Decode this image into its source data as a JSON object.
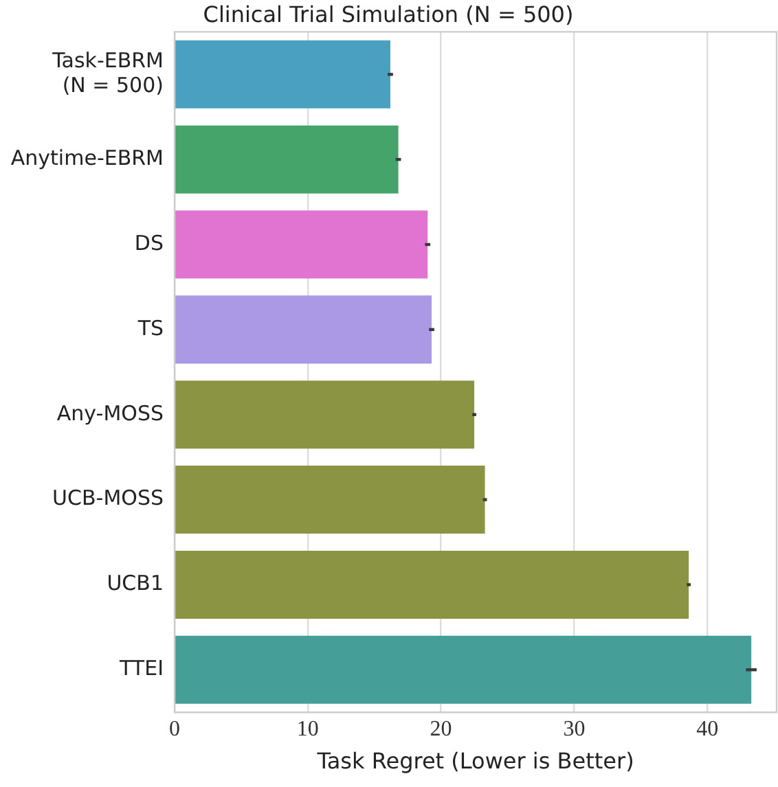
{
  "chart_data": {
    "type": "bar",
    "orientation": "horizontal",
    "title": "Clinical Trial Simulation (N = 500)",
    "xlabel": "Task Regret (Lower is Better)",
    "categories": [
      "Task-EBRM\n(N = 500)",
      "Anytime-EBRM",
      "DS",
      "TS",
      "Any-MOSS",
      "UCB-MOSS",
      "UCB1",
      "TTEI"
    ],
    "values": [
      16.2,
      16.8,
      19.0,
      19.3,
      22.5,
      23.3,
      38.6,
      43.3
    ],
    "errors": [
      0.2,
      0.2,
      0.2,
      0.2,
      0.15,
      0.15,
      0.15,
      0.4
    ],
    "colors": [
      "#4aa0c0",
      "#45a46a",
      "#e074d0",
      "#ab99e6",
      "#8a9442",
      "#8a9442",
      "#8a9442",
      "#459e98"
    ],
    "xlim": [
      0,
      45.2
    ],
    "xticks": [
      0,
      10,
      20,
      30,
      40
    ],
    "grid": "x",
    "legend": false
  }
}
